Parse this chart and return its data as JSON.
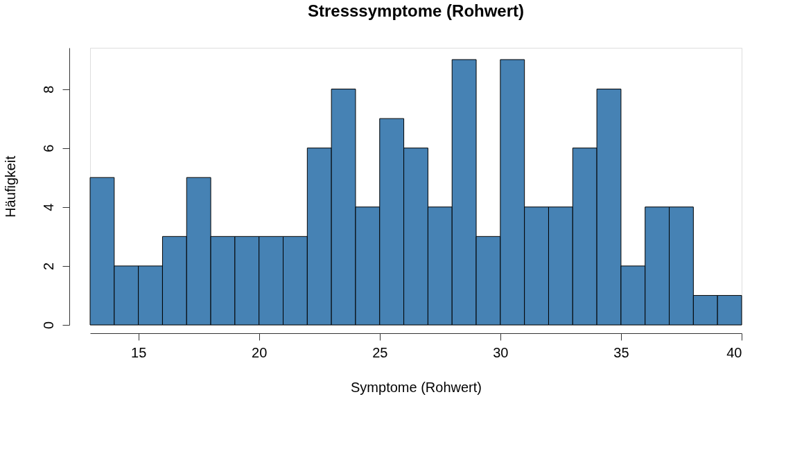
{
  "chart_data": {
    "type": "histogram",
    "title": "Stresssymptome (Rohwert)",
    "xlabel": "Symptome (Rohwert)",
    "ylabel": "Häufigkeit",
    "bins": [
      13,
      14,
      15,
      16,
      17,
      18,
      19,
      20,
      21,
      22,
      23,
      24,
      25,
      26,
      27,
      28,
      29,
      30,
      31,
      32,
      33,
      34,
      35,
      36,
      37,
      38,
      39,
      40
    ],
    "values": [
      5,
      2,
      2,
      3,
      5,
      3,
      3,
      3,
      3,
      6,
      8,
      4,
      7,
      6,
      4,
      9,
      3,
      9,
      4,
      4,
      6,
      8,
      2,
      4,
      4,
      1,
      1
    ],
    "color": "#4682b4",
    "xlim": [
      13,
      40
    ],
    "xticks": [
      15,
      20,
      25,
      30,
      35,
      40
    ],
    "ylim": [
      0,
      9.4
    ],
    "yticks": [
      0,
      2,
      4,
      6,
      8
    ],
    "grid": false
  }
}
